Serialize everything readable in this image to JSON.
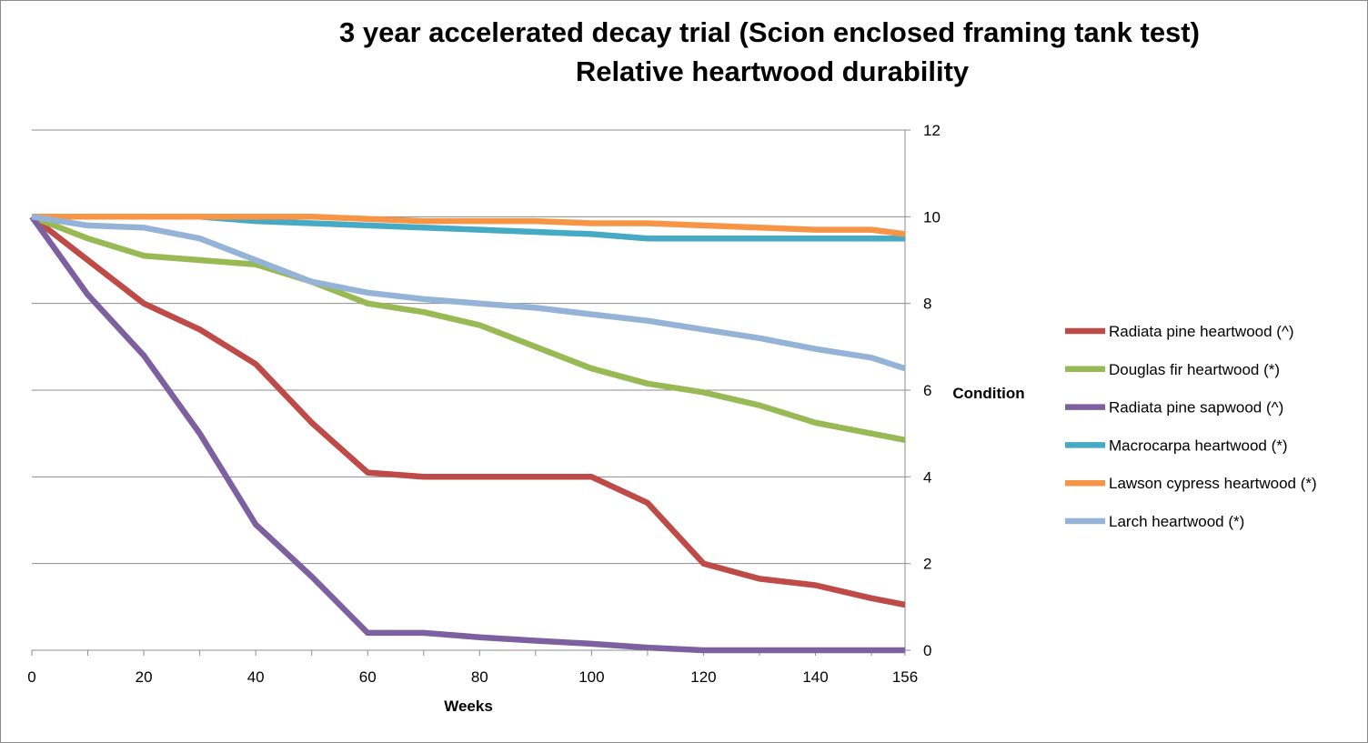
{
  "chart_data": {
    "type": "line",
    "title": [
      "3 year accelerated decay trial (Scion enclosed framing tank test)",
      "Relative heartwood durability"
    ],
    "xlabel": "Weeks",
    "ylabel": "Condition",
    "xlim": [
      0,
      156
    ],
    "ylim": [
      0,
      12
    ],
    "x_ticks": [
      0,
      20,
      40,
      60,
      80,
      100,
      120,
      140,
      156
    ],
    "y_ticks": [
      0,
      2,
      4,
      6,
      8,
      10,
      12
    ],
    "y_axis_side": "right",
    "grid": "horizontal",
    "legend_position": "right",
    "x": [
      0,
      10,
      20,
      30,
      40,
      50,
      60,
      70,
      80,
      90,
      100,
      110,
      120,
      130,
      140,
      150,
      156
    ],
    "series": [
      {
        "name": "Radiata pine heartwood (^)",
        "color": "#be4b48",
        "values": [
          10,
          9.0,
          8.0,
          7.4,
          6.6,
          5.25,
          4.1,
          4.0,
          4.0,
          4.0,
          4.0,
          3.4,
          2.0,
          1.65,
          1.5,
          1.2,
          1.05
        ]
      },
      {
        "name": "Douglas fir heartwood (*)",
        "color": "#98b954",
        "values": [
          10,
          9.5,
          9.1,
          9.0,
          8.9,
          8.5,
          8.0,
          7.8,
          7.5,
          7.0,
          6.5,
          6.15,
          5.95,
          5.65,
          5.25,
          5.0,
          4.85
        ]
      },
      {
        "name": "Radiata pine sapwood (^)",
        "color": "#7d60a0",
        "values": [
          10,
          8.2,
          6.8,
          5.0,
          2.9,
          1.7,
          0.4,
          0.4,
          0.3,
          0.22,
          0.15,
          0.06,
          0.0,
          0.0,
          0.0,
          0.0,
          0.0
        ]
      },
      {
        "name": "Macrocarpa heartwood (*)",
        "color": "#46aac5",
        "values": [
          10,
          10,
          10,
          10,
          9.9,
          9.85,
          9.8,
          9.75,
          9.7,
          9.65,
          9.6,
          9.5,
          9.5,
          9.5,
          9.5,
          9.5,
          9.5
        ]
      },
      {
        "name": "Lawson cypress heartwood (*)",
        "color": "#f69545",
        "values": [
          10,
          10,
          10,
          10,
          10,
          10,
          9.95,
          9.9,
          9.9,
          9.9,
          9.85,
          9.85,
          9.8,
          9.75,
          9.7,
          9.7,
          9.6
        ]
      },
      {
        "name": "Larch heartwood (*)",
        "color": "#95b3d7",
        "values": [
          10,
          9.8,
          9.75,
          9.5,
          9.0,
          8.5,
          8.25,
          8.1,
          8.0,
          7.9,
          7.75,
          7.6,
          7.4,
          7.2,
          6.95,
          6.75,
          6.5
        ]
      }
    ]
  }
}
